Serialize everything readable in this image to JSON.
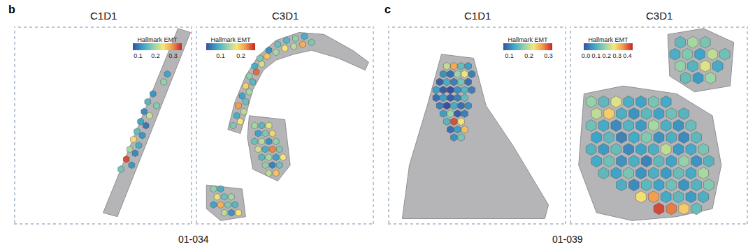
{
  "figure": {
    "panels": [
      {
        "label": "b",
        "caption": "01-034"
      },
      {
        "label": "c",
        "caption": "01-039"
      }
    ]
  },
  "chart_data": [
    {
      "type": "scatter",
      "title": "C1D1",
      "marker": "hexagon",
      "tick_labels": false,
      "xlim": [
        0,
        100
      ],
      "ylim": [
        0,
        100
      ],
      "x": [
        78,
        75,
        80,
        73,
        76,
        71,
        74,
        69,
        72,
        67,
        70,
        65,
        68,
        63,
        66,
        60,
        84,
        86
      ],
      "y": [
        66,
        62,
        60,
        57,
        55,
        52,
        50,
        47,
        45,
        43,
        40,
        38,
        36,
        33,
        30,
        28,
        72,
        76
      ],
      "values": [
        0.12,
        0.15,
        0.18,
        0.11,
        0.22,
        0.13,
        0.1,
        0.16,
        0.12,
        0.25,
        0.14,
        0.2,
        0.11,
        0.33,
        0.12,
        0.17,
        0.19,
        0.13
      ],
      "colorbar": {
        "title": "Hallmark EMT",
        "range": [
          0.07,
          0.35
        ],
        "ticks": [
          0.1,
          0.2,
          0.3
        ]
      }
    },
    {
      "type": "scatter",
      "title": "C3D1",
      "marker": "hexagon",
      "tick_labels": false,
      "xlim": [
        0,
        100
      ],
      "ylim": [
        0,
        100
      ],
      "x": [
        21,
        25,
        23,
        27,
        24,
        28,
        26,
        30,
        28,
        32,
        30,
        34,
        33,
        37,
        36,
        40,
        41,
        45,
        46,
        50,
        51,
        55,
        56,
        60,
        61,
        65,
        33,
        37,
        41,
        35,
        39,
        43,
        33,
        37,
        41,
        45,
        35,
        39,
        43,
        47,
        37,
        41,
        45,
        49,
        39,
        43,
        47,
        41,
        45,
        10,
        14,
        12,
        16,
        20,
        10,
        14,
        18,
        22,
        16,
        20,
        24
      ],
      "y": [
        50,
        52,
        55,
        57,
        60,
        62,
        65,
        67,
        70,
        72,
        75,
        77,
        80,
        81,
        84,
        85,
        88,
        87,
        91,
        89,
        93,
        90,
        94,
        91,
        95,
        92,
        50,
        50,
        50,
        46,
        46,
        46,
        42,
        42,
        42,
        42,
        38,
        38,
        38,
        38,
        34,
        34,
        34,
        34,
        30,
        30,
        30,
        26,
        26,
        18,
        18,
        14,
        14,
        14,
        10,
        10,
        10,
        10,
        6,
        6,
        6
      ],
      "values": [
        0.12,
        0.18,
        0.09,
        0.15,
        0.22,
        0.11,
        0.08,
        0.14,
        0.19,
        0.1,
        0.13,
        0.24,
        0.09,
        0.16,
        0.12,
        0.2,
        0.07,
        0.14,
        0.11,
        0.18,
        0.1,
        0.15,
        0.13,
        0.21,
        0.09,
        0.12,
        0.14,
        0.1,
        0.17,
        0.08,
        0.12,
        0.19,
        0.11,
        0.15,
        0.07,
        0.13,
        0.16,
        0.09,
        0.23,
        0.12,
        0.1,
        0.14,
        0.08,
        0.18,
        0.13,
        0.06,
        0.11,
        0.15,
        0.2,
        0.13,
        0.09,
        0.17,
        0.11,
        0.14,
        0.08,
        0.21,
        0.12,
        0.1,
        0.15,
        0.07,
        0.18
      ],
      "colorbar": {
        "title": "Hallmark EMT",
        "range": [
          0.03,
          0.27
        ],
        "ticks": [
          0.1,
          0.2
        ]
      }
    },
    {
      "type": "scatter",
      "title": "C1D1",
      "marker": "hexagon",
      "tick_labels": false,
      "xlim": [
        0,
        100
      ],
      "ylim": [
        0,
        100
      ],
      "x": [
        33,
        37,
        41,
        45,
        31,
        35,
        39,
        43,
        47,
        29,
        33,
        37,
        41,
        45,
        27,
        31,
        35,
        39,
        43,
        47,
        27,
        31,
        35,
        39,
        43,
        29,
        33,
        37,
        41,
        45,
        31,
        35,
        39,
        43,
        33,
        37,
        41,
        35,
        39,
        43,
        37,
        41
      ],
      "y": [
        80,
        80,
        80,
        80,
        76,
        76,
        76,
        76,
        76,
        72,
        72,
        72,
        72,
        72,
        68,
        68,
        68,
        68,
        68,
        68,
        64,
        64,
        64,
        64,
        64,
        60,
        60,
        60,
        60,
        60,
        56,
        56,
        56,
        56,
        52,
        52,
        52,
        48,
        48,
        48,
        44,
        44
      ],
      "values": [
        0.2,
        0.26,
        0.15,
        0.12,
        0.11,
        0.09,
        0.18,
        0.22,
        0.1,
        0.08,
        0.13,
        0.1,
        0.16,
        0.09,
        0.12,
        0.08,
        0.07,
        0.11,
        0.14,
        0.1,
        0.09,
        0.12,
        0.08,
        0.1,
        0.15,
        0.1,
        0.07,
        0.13,
        0.09,
        0.11,
        0.12,
        0.18,
        0.08,
        0.1,
        0.14,
        0.3,
        0.22,
        0.09,
        0.12,
        0.25,
        0.11,
        0.16
      ],
      "colorbar": {
        "title": "Hallmark EMT",
        "range": [
          0.07,
          0.32
        ],
        "ticks": [
          0.1,
          0.2,
          0.3
        ]
      }
    },
    {
      "type": "scatter",
      "title": "C3D1",
      "marker": "hexagon",
      "tick_labels": false,
      "xlim": [
        0,
        100
      ],
      "ylim": [
        0,
        100
      ],
      "x": [
        12,
        19,
        26,
        33,
        40,
        47,
        54,
        15,
        22,
        29,
        36,
        43,
        50,
        57,
        64,
        12,
        19,
        26,
        33,
        40,
        47,
        54,
        61,
        68,
        15,
        22,
        29,
        36,
        43,
        50,
        57,
        64,
        71,
        12,
        19,
        26,
        33,
        40,
        47,
        54,
        61,
        68,
        75,
        15,
        22,
        29,
        36,
        43,
        50,
        57,
        64,
        71,
        78,
        19,
        26,
        33,
        40,
        47,
        54,
        61,
        68,
        75,
        29,
        36,
        43,
        50,
        57,
        64,
        71,
        78,
        40,
        47,
        54,
        61,
        68,
        75,
        50,
        57,
        64,
        71,
        62,
        69,
        76,
        59,
        66,
        73,
        80,
        87,
        62,
        69,
        76,
        83,
        65,
        72,
        79
      ],
      "y": [
        62,
        62,
        62,
        62,
        62,
        62,
        62,
        56,
        56,
        56,
        56,
        56,
        56,
        56,
        56,
        50,
        50,
        50,
        50,
        50,
        50,
        50,
        50,
        50,
        44,
        44,
        44,
        44,
        44,
        44,
        44,
        44,
        44,
        38,
        38,
        38,
        38,
        38,
        38,
        38,
        38,
        38,
        38,
        32,
        32,
        32,
        32,
        32,
        32,
        32,
        32,
        32,
        32,
        26,
        26,
        26,
        26,
        26,
        26,
        26,
        26,
        26,
        20,
        20,
        20,
        20,
        20,
        20,
        20,
        20,
        14,
        14,
        14,
        14,
        14,
        14,
        8,
        8,
        8,
        8,
        92,
        92,
        92,
        86,
        86,
        86,
        86,
        86,
        80,
        80,
        80,
        80,
        74,
        74,
        74
      ],
      "values": [
        0.18,
        0.12,
        0.25,
        0.1,
        0.08,
        0.15,
        0.09,
        0.22,
        0.3,
        0.1,
        0.06,
        0.12,
        0.08,
        0.14,
        0.11,
        0.14,
        0.09,
        0.05,
        0.11,
        0.07,
        0.2,
        0.1,
        0.06,
        0.13,
        0.08,
        0.12,
        0.04,
        0.09,
        0.16,
        0.06,
        0.1,
        0.05,
        0.12,
        0.11,
        0.07,
        0.13,
        0.05,
        0.08,
        0.1,
        0.22,
        0.07,
        0.09,
        0.15,
        0.09,
        0.14,
        0.06,
        0.1,
        0.04,
        0.12,
        0.08,
        0.18,
        0.06,
        0.11,
        0.12,
        0.08,
        0.15,
        0.06,
        0.1,
        0.07,
        0.13,
        0.09,
        0.2,
        0.1,
        0.05,
        0.12,
        0.08,
        0.14,
        0.06,
        0.11,
        0.16,
        0.28,
        0.35,
        0.09,
        0.12,
        0.07,
        0.1,
        0.42,
        0.38,
        0.3,
        0.13,
        0.12,
        0.2,
        0.15,
        0.1,
        0.16,
        0.08,
        0.22,
        0.14,
        0.18,
        0.11,
        0.25,
        0.09,
        0.13,
        0.07,
        0.19
      ],
      "colorbar": {
        "title": "Hallmark EMT",
        "range": [
          -0.02,
          0.45
        ],
        "ticks": [
          {
            "value": 0,
            "label": "0.0"
          },
          0.1,
          0.2,
          0.3,
          0.4
        ]
      }
    }
  ]
}
